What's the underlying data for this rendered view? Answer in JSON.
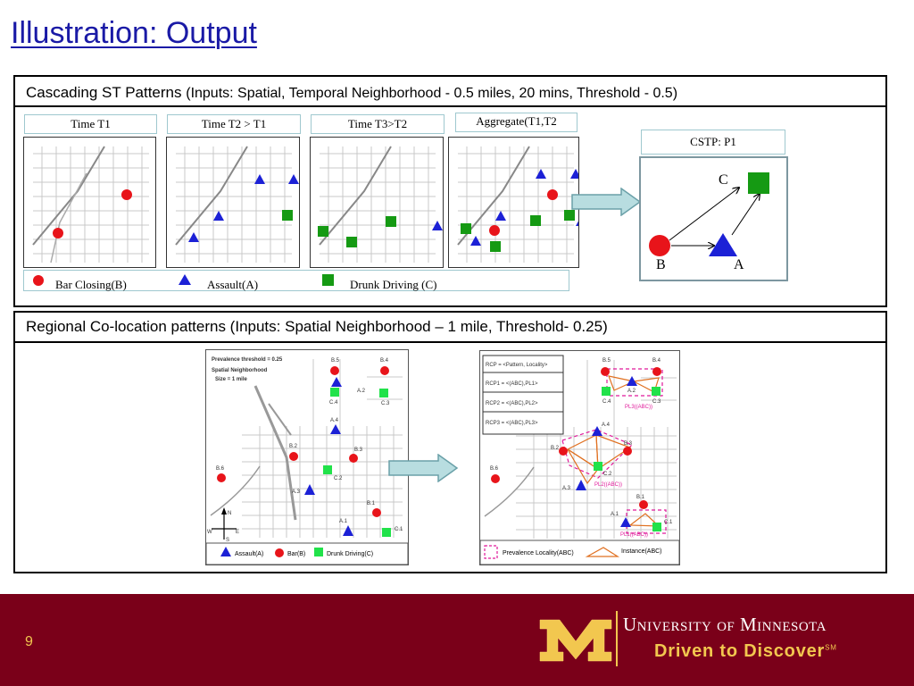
{
  "slide": {
    "title": "Illustration: Output",
    "page_number": "9"
  },
  "panel_top": {
    "heading": "Cascading ST Patterns",
    "subheading": "(Inputs: Spatial, Temporal Neighborhood - 0.5 miles, 20 mins, Threshold - 0.5)",
    "time_labels": [
      "Time T1",
      "Time T2 > T1",
      "Time T3>T2",
      "Aggregate(T1,T2"
    ],
    "cstp": {
      "label": "CSTP: P1",
      "node_c": "C",
      "node_b": "B",
      "node_a": "A"
    },
    "legend": {
      "bar": "Bar Closing(B)",
      "assault": "Assault(A)",
      "drunk": "Drunk Driving (C)"
    }
  },
  "panel_bottom": {
    "heading": "Regional Co-location patterns (Inputs: Spatial Neighborhood – 1 mile, Threshold- 0.25)",
    "left_map": {
      "info": [
        "Prevalence threshold = 0.25",
        "Spatial Neighborhood",
        "Size = 1 mile"
      ],
      "labels": [
        "B.5",
        "B.4",
        "A.2",
        "C.4",
        "C.3",
        "A.4",
        "B.2",
        "B.3",
        "B.6",
        "C.2",
        "A.3",
        "B.1",
        "A.1",
        "C.1"
      ],
      "compass": {
        "n": "N",
        "w": "W",
        "e": "E",
        "s": "S"
      },
      "legend": {
        "assault": "Assault(A)",
        "bar": "Bar(B)",
        "drunk": "Drunk Driving(C)"
      }
    },
    "right_map": {
      "rcp": [
        "RCP = <Pattern, Locality>",
        "RCP1 = <(ABC),PL1>",
        "RCP2 = <(ABC),PL2>",
        "RCP3 = <(ABC),PL3>"
      ],
      "pl_labels": [
        "PL3((ABC))",
        "PL2((ABC))",
        "PL1((ABC))"
      ],
      "labels": [
        "B.5",
        "B.4",
        "A.2",
        "C.4",
        "C.3",
        "A.4",
        "B.2",
        "B.3",
        "B.6",
        "C.2",
        "A.3",
        "B.1",
        "A.1",
        "C.1"
      ],
      "legend": {
        "locality": "Prevalence Locality(ABC)",
        "instance": "Instance(ABC)"
      }
    }
  },
  "footer": {
    "university": "University of Minnesota",
    "tagline": "Driven to Discover",
    "tagline_mark": "SM"
  },
  "colors": {
    "maroon": "#7a0019",
    "gold": "#f2c74f",
    "title_blue": "#1a1aa6",
    "bar_red": "#e8141a",
    "assault_blue": "#1c21d6",
    "drunk_green": "#159a13",
    "arrow_fill": "#b8dde0"
  }
}
